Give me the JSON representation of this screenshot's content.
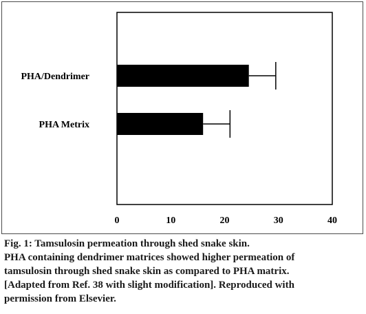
{
  "chart_data": {
    "type": "bar",
    "orientation": "horizontal",
    "categories": [
      "PHA/Dendrimer",
      "PHA Metrix"
    ],
    "values": [
      24.5,
      16
    ],
    "error": [
      5,
      5
    ],
    "xlim": [
      0,
      40
    ],
    "xticks": [
      0,
      10,
      20,
      30,
      40
    ],
    "title": "",
    "xlabel": "",
    "ylabel": "",
    "grid": false,
    "bar_color": "#000000"
  },
  "caption": {
    "line1": "Fig. 1: Tamsulosin permeation through shed snake skin.",
    "line2": "PHA containing dendrimer matrices showed higher permeation of",
    "line3": "tamsulosin through shed snake skin as compared to PHA matrix.",
    "line4": "[Adapted from Ref. 38 with slight modification]. Reproduced with",
    "line5": "permission from Elsevier."
  }
}
